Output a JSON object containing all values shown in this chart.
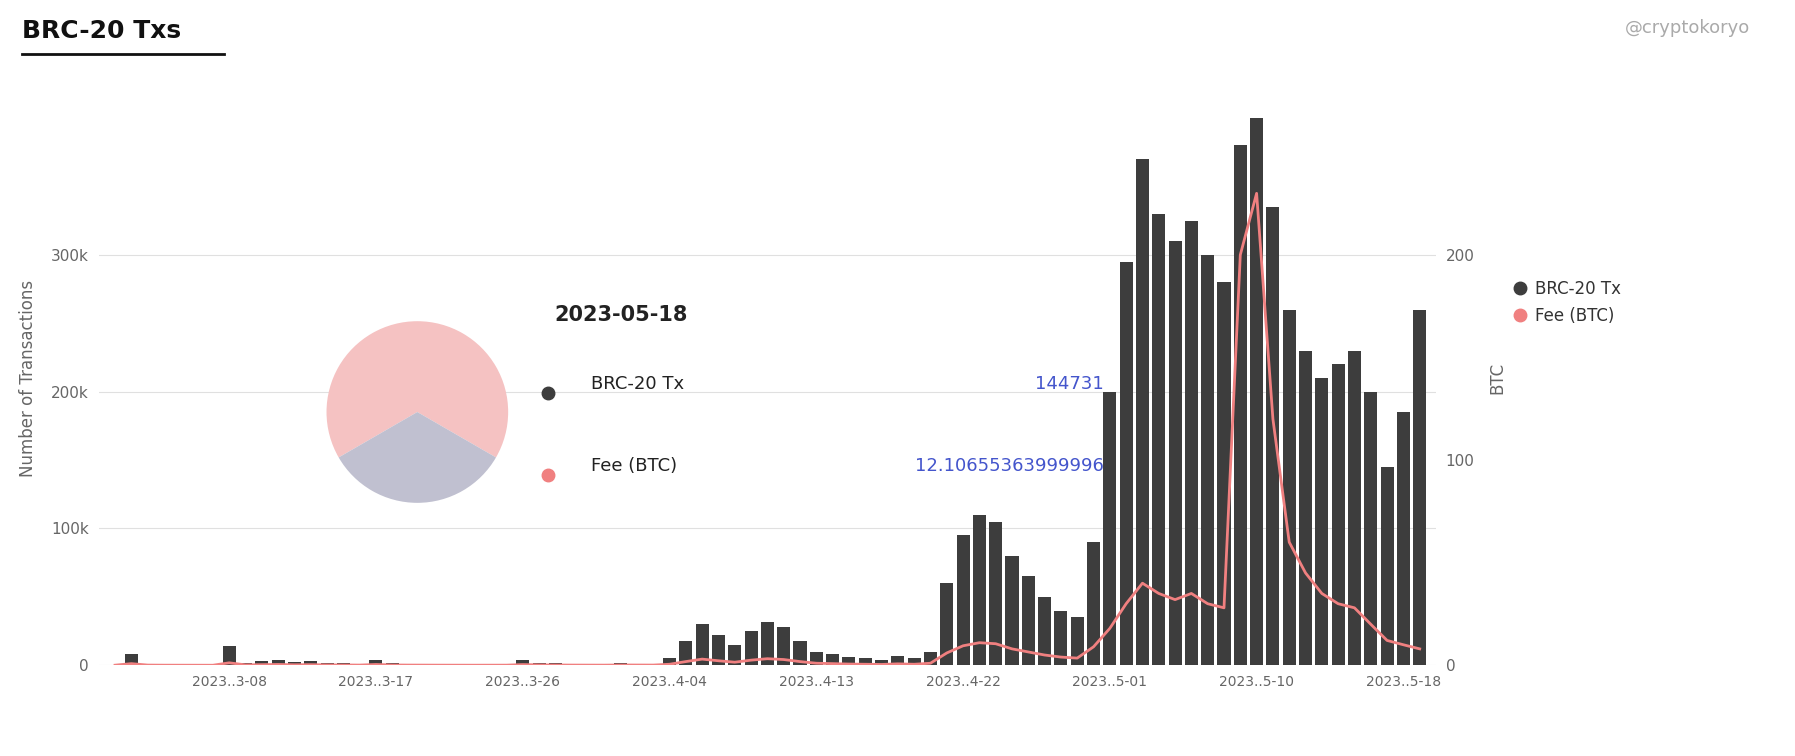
{
  "title": "BRC-20 Txs",
  "watermark": "@cryptokoryo",
  "ylabel_left": "Number of Transactions",
  "ylabel_right": "BTC",
  "legend_labels": [
    "BRC-20 Tx",
    "Fee (BTC)"
  ],
  "bar_color": "#3d3d3d",
  "line_color": "#f08080",
  "background_color": "#ffffff",
  "tooltip_date": "2023-05-18",
  "tooltip_tx": "144731",
  "tooltip_fee": "12.10655363999996",
  "tx_values": [
    500,
    8000,
    1000,
    600,
    400,
    300,
    200,
    14000,
    2000,
    3000,
    4000,
    2500,
    3000,
    2000,
    1500,
    1000,
    4000,
    1500,
    1000,
    800,
    600,
    500,
    400,
    500,
    600,
    3500,
    2000,
    1500,
    1000,
    800,
    700,
    1500,
    1200,
    1000,
    5000,
    18000,
    30000,
    22000,
    15000,
    25000,
    32000,
    28000,
    18000,
    10000,
    8000,
    6000,
    5000,
    4000,
    7000,
    5000,
    10000,
    60000,
    95000,
    110000,
    105000,
    80000,
    65000,
    50000,
    40000,
    35000,
    90000,
    200000,
    295000,
    370000,
    330000,
    310000,
    325000,
    300000,
    280000,
    380000,
    400000,
    335000,
    260000,
    230000,
    210000,
    220000,
    230000,
    200000,
    144731,
    185000,
    260000
  ],
  "fee_values": [
    0.05,
    0.8,
    0.1,
    0.05,
    0.04,
    0.03,
    0.02,
    1.2,
    0.2,
    0.3,
    0.4,
    0.25,
    0.3,
    0.2,
    0.15,
    0.1,
    0.4,
    0.15,
    0.1,
    0.08,
    0.06,
    0.05,
    0.04,
    0.05,
    0.06,
    0.35,
    0.2,
    0.15,
    0.1,
    0.08,
    0.07,
    0.15,
    0.12,
    0.1,
    0.5,
    1.8,
    3.0,
    2.2,
    1.5,
    2.5,
    3.2,
    2.8,
    1.8,
    1.0,
    0.8,
    0.6,
    0.5,
    0.4,
    0.7,
    0.5,
    1.0,
    6.0,
    9.5,
    11.0,
    10.5,
    8.0,
    6.5,
    5.0,
    4.0,
    3.5,
    9.0,
    18.0,
    30.0,
    40.0,
    35.0,
    32.0,
    35.0,
    30.0,
    28.0,
    200.0,
    230.0,
    120.0,
    60.0,
    45.0,
    35.0,
    30.0,
    28.0,
    20.0,
    12.10655363999996,
    10.0,
    8.0
  ],
  "xtick_positions": [
    7,
    16,
    25,
    34,
    43,
    52,
    61,
    70,
    79
  ],
  "xtick_labels": [
    "2023..3-08",
    "2023..3-17",
    "2023..3-26",
    "2023..4-04",
    "2023..4-13",
    "2023..4-22",
    "2023..5-01",
    "2023..5-10",
    "2023..5-18"
  ],
  "ylim_left": [
    0,
    420000
  ],
  "ylim_right": [
    0,
    280
  ],
  "yticks_left": [
    0,
    100000,
    200000,
    300000
  ],
  "ytick_labels_left": [
    "0",
    "100k",
    "200k",
    "300k"
  ],
  "yticks_right": [
    0,
    100,
    200
  ],
  "grid_color": "#e0e0e0",
  "tooltip_bg_color": "#fce8e8",
  "pie_pink_color": "#f5c2c2",
  "pie_gray_color": "#c0c0d0",
  "title_color": "#111111",
  "watermark_color": "#aaaaaa",
  "axis_label_color": "#666666",
  "tick_color": "#666666"
}
